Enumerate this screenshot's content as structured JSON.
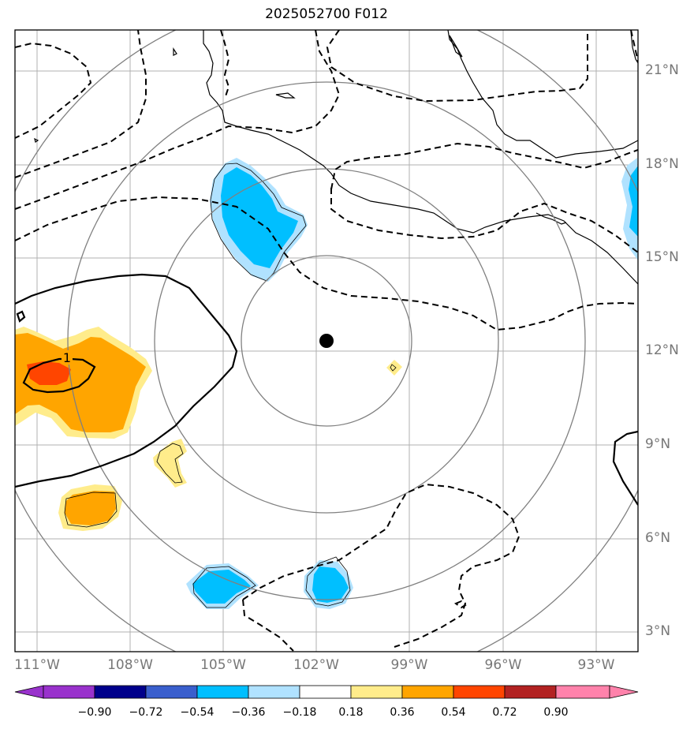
{
  "title": "2025052700 F012",
  "lat_labels": [
    "21°N",
    "18°N",
    "15°N",
    "12°N",
    "9°N",
    "6°N",
    "3°N"
  ],
  "lon_labels": [
    "111°W",
    "108°W",
    "105°W",
    "102°W",
    "99°W",
    "96°W",
    "93°W"
  ],
  "colorbar": {
    "labels": [
      "−0.90",
      "−0.72",
      "−0.54",
      "−0.36",
      "−0.18",
      "0.18",
      "0.36",
      "0.54",
      "0.72",
      "0.90"
    ],
    "colors": [
      "#9932cc",
      "#00008b",
      "#3a5fcd",
      "#00bfff",
      "#b0e2ff",
      "#ffffff",
      "#ffec8b",
      "#ffa500",
      "#ff4500",
      "#b22222",
      "#ff82ab"
    ]
  },
  "contour_label": "1",
  "storm_center": {
    "lon": -101.8,
    "lat": 12.3
  },
  "colors": {
    "positive_fill": "#ffa500",
    "negative_fill": "#00bfff",
    "grid": "#b0b0b0",
    "ring": "#808080"
  }
}
